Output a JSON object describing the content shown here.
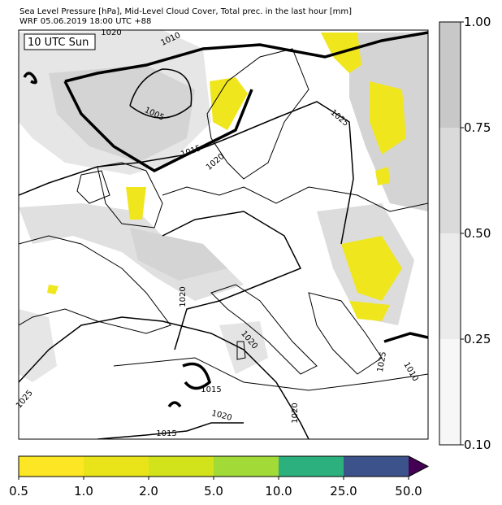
{
  "header": {
    "line1": "Sea Level Pressure [hPa], Mid-Level Cloud Cover, Total prec. in the last hour [mm]",
    "line2": "WRF 05.06.2019 18:00 UTC +88"
  },
  "map": {
    "time_label": "10 UTC Sun",
    "contour_labels": [
      "1020",
      "1010",
      "1005",
      "1015",
      "1020",
      "1025",
      "1020",
      "1020",
      "1015",
      "1020",
      "1015",
      "1020",
      "1025",
      "1025",
      "1010"
    ]
  },
  "cloud_colorbar": {
    "colors": [
      "#f7f7f7",
      "#ebebeb",
      "#dadada",
      "#c8c8c8"
    ],
    "ticks": [
      {
        "value": 0.1,
        "label": "0.10"
      },
      {
        "value": 0.25,
        "label": "0.25"
      },
      {
        "value": 0.5,
        "label": "0.50"
      },
      {
        "value": 0.75,
        "label": "0.75"
      },
      {
        "value": 1,
        "label": "1.00"
      }
    ]
  },
  "precip_colorbar": {
    "colors": [
      "#fde725",
      "#e8e419",
      "#d2e21b",
      "#a2da37",
      "#2cb17e",
      "#3b528b"
    ],
    "extend_color": "#440154",
    "ticks": [
      0.5,
      {
        "value": 1,
        "label": "1.0"
      },
      {
        "value": 2,
        "label": "2.0"
      },
      {
        "value": 5,
        "label": "5.0"
      },
      {
        "value": 10,
        "label": "10.0"
      },
      {
        "value": 25,
        "label": "25.0"
      },
      {
        "value": 50,
        "label": "50.0"
      }
    ]
  }
}
